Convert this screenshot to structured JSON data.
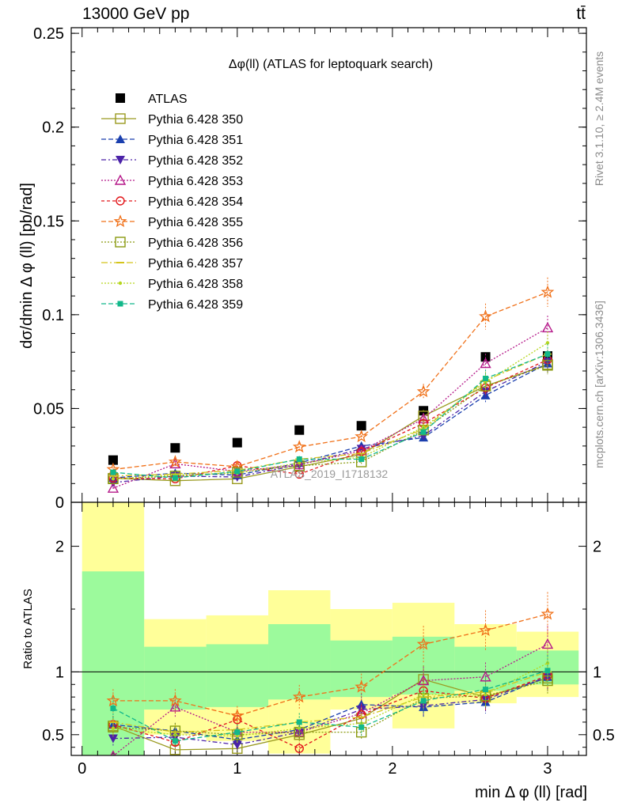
{
  "header": {
    "energy_label": "13000 GeV pp",
    "process_label": "tt̄"
  },
  "side_texts": {
    "rivet": "Rivet 3.1.10, ≥ 2.4M events",
    "mcplots": "mcplots.cern.ch [arXiv:1306.3436]"
  },
  "watermark": "ATLAS_2019_I1718132",
  "chart_data": [
    {
      "type": "scatter",
      "title": "Δφ(ll) (ATLAS for leptoquark search)",
      "ylabel": "dσ/dmin Δ φ (ll) [pb/rad]",
      "xlabel": "min Δ φ (ll) [rad]",
      "xlim": [
        -0.07,
        3.25
      ],
      "ylim": [
        0,
        0.253
      ],
      "yticks": [
        0,
        0.05,
        0.1,
        0.15,
        0.2,
        0.25
      ],
      "ytick_labels": [
        "0",
        "0.05",
        "0.1",
        "0.15",
        "0.2",
        "0.25"
      ],
      "x": [
        0.2,
        0.6,
        1.0,
        1.4,
        1.8,
        2.2,
        2.6,
        3.0
      ],
      "legend_position": "top-left",
      "series": [
        {
          "name": "ATLAS",
          "color": "#000000",
          "marker": "filled-square",
          "dash": "none",
          "values": [
            0.0225,
            0.029,
            0.0318,
            0.0385,
            0.0408,
            0.0488,
            0.0775,
            0.078
          ]
        },
        {
          "name": "Pythia 6.428 350",
          "color": "#9a9a20",
          "marker": "open-square",
          "dash": "solid",
          "values": [
            0.0128,
            0.0115,
            0.0125,
            0.019,
            0.0255,
            0.046,
            0.062,
            0.0735
          ]
        },
        {
          "name": "Pythia 6.428 351",
          "color": "#1a3fae",
          "marker": "filled-triangle-up",
          "dash": "6,3",
          "values": [
            0.013,
            0.0155,
            0.0145,
            0.021,
            0.03,
            0.0345,
            0.057,
            0.074
          ]
        },
        {
          "name": "Pythia 6.428 352",
          "color": "#4b22a8",
          "marker": "filled-triangle-down",
          "dash": "6,3,2,3",
          "values": [
            0.0105,
            0.014,
            0.0135,
            0.02,
            0.0285,
            0.0355,
            0.059,
            0.075
          ]
        },
        {
          "name": "Pythia 6.428 353",
          "color": "#b5198a",
          "marker": "open-triangle-up",
          "dash": "2,2",
          "values": [
            0.0075,
            0.0205,
            0.0165,
            0.02,
            0.0275,
            0.0445,
            0.074,
            0.093
          ]
        },
        {
          "name": "Pythia 6.428 354",
          "color": "#e2171b",
          "marker": "open-circle",
          "dash": "4,3",
          "values": [
            0.013,
            0.0125,
            0.0195,
            0.015,
            0.027,
            0.042,
            0.061,
            0.076
          ]
        },
        {
          "name": "Pythia 6.428 355",
          "color": "#f07018",
          "marker": "open-star",
          "dash": "6,3",
          "values": [
            0.0175,
            0.0215,
            0.019,
            0.0295,
            0.035,
            0.059,
            0.099,
            0.112
          ]
        },
        {
          "name": "Pythia 6.428 356",
          "color": "#8a9a10",
          "marker": "open-square",
          "dash": "2,2",
          "values": [
            0.0125,
            0.014,
            0.016,
            0.0195,
            0.0215,
            0.0385,
            0.062,
            0.073
          ]
        },
        {
          "name": "Pythia 6.428 357",
          "color": "#d4c41a",
          "marker": "dash",
          "dash": "8,3,2,3",
          "values": [
            0.014,
            0.015,
            0.017,
            0.023,
            0.026,
            0.039,
            0.065,
            0.079
          ]
        },
        {
          "name": "Pythia 6.428 358",
          "color": "#b6d61e",
          "marker": "dot",
          "dash": "2,2",
          "values": [
            0.0125,
            0.0145,
            0.0155,
            0.021,
            0.024,
            0.04,
            0.064,
            0.085
          ]
        },
        {
          "name": "Pythia 6.428 359",
          "color": "#12b88a",
          "marker": "filled-square-small",
          "dash": "6,3",
          "values": [
            0.016,
            0.013,
            0.0165,
            0.023,
            0.023,
            0.0375,
            0.066,
            0.079
          ]
        }
      ]
    },
    {
      "type": "scatter",
      "ylabel": "Ratio to ATLAS",
      "xlabel": "min Δ φ (ll) [rad]",
      "xlim": [
        -0.07,
        3.25
      ],
      "ylim": [
        0.335,
        2.35
      ],
      "yticks": [
        0.5,
        1,
        2
      ],
      "ytick_labels": [
        "0.5",
        "1",
        "2"
      ],
      "xticks": [
        0,
        1,
        2,
        3
      ],
      "xtick_labels": [
        "0",
        "1",
        "2",
        "3"
      ],
      "x": [
        0.2,
        0.6,
        1.0,
        1.4,
        1.8,
        2.2,
        2.6,
        3.0
      ],
      "bin_edges": [
        0,
        0.4,
        0.8,
        1.2,
        1.6,
        2.0,
        2.4,
        2.8,
        3.2
      ],
      "uncertainty_band_inner": {
        "color": "#9cfa9c",
        "low": [
          0.2,
          0.7,
          0.72,
          0.78,
          0.8,
          0.82,
          0.85,
          0.9
        ],
        "high": [
          1.8,
          1.2,
          1.22,
          1.38,
          1.25,
          1.28,
          1.2,
          1.17
        ]
      },
      "uncertainty_band_outer": {
        "color": "#ffff99",
        "low": [
          0.2,
          0.5,
          0.45,
          0.35,
          0.7,
          0.55,
          0.75,
          0.8
        ],
        "high": [
          2.4,
          1.42,
          1.45,
          1.65,
          1.5,
          1.55,
          1.38,
          1.32
        ]
      },
      "reference_value": 1,
      "series": [
        {
          "name": "Pythia 6.428 350",
          "color": "#9a9a20",
          "marker": "open-square",
          "dash": "solid",
          "values": [
            0.57,
            0.38,
            0.39,
            0.5,
            0.63,
            0.94,
            0.8,
            0.95
          ]
        },
        {
          "name": "Pythia 6.428 351",
          "color": "#1a3fae",
          "marker": "filled-triangle-up",
          "dash": "6,3",
          "values": [
            0.58,
            0.53,
            0.46,
            0.54,
            0.74,
            0.72,
            0.76,
            0.96
          ]
        },
        {
          "name": "Pythia 6.428 352",
          "color": "#4b22a8",
          "marker": "filled-triangle-down",
          "dash": "6,3,2,3",
          "values": [
            0.47,
            0.48,
            0.42,
            0.52,
            0.7,
            0.73,
            0.78,
            0.96
          ]
        },
        {
          "name": "Pythia 6.428 353",
          "color": "#b5198a",
          "marker": "open-triangle-up",
          "dash": "2,2",
          "values": [
            0.33,
            0.72,
            0.52,
            0.52,
            0.67,
            0.93,
            0.96,
            1.22
          ]
        },
        {
          "name": "Pythia 6.428 354",
          "color": "#e2171b",
          "marker": "open-circle",
          "dash": "4,3",
          "values": [
            0.58,
            0.44,
            0.62,
            0.39,
            0.66,
            0.85,
            0.79,
            0.97
          ]
        },
        {
          "name": "Pythia 6.428 355",
          "color": "#f07018",
          "marker": "open-star",
          "dash": "6,3",
          "values": [
            0.77,
            0.77,
            0.65,
            0.8,
            0.88,
            1.22,
            1.33,
            1.46
          ]
        },
        {
          "name": "Pythia 6.428 356",
          "color": "#8a9a10",
          "marker": "open-square",
          "dash": "2,2",
          "values": [
            0.56,
            0.53,
            0.5,
            0.52,
            0.52,
            0.79,
            0.81,
            0.93
          ]
        },
        {
          "name": "Pythia 6.428 357",
          "color": "#d4c41a",
          "marker": "dash",
          "dash": "8,3,2,3",
          "values": [
            0.6,
            0.52,
            0.54,
            0.6,
            0.64,
            0.8,
            0.84,
            1.0
          ]
        },
        {
          "name": "Pythia 6.428 358",
          "color": "#b6d61e",
          "marker": "dot",
          "dash": "2,2",
          "values": [
            0.55,
            0.5,
            0.49,
            0.55,
            0.59,
            0.82,
            0.82,
            1.07
          ]
        },
        {
          "name": "Pythia 6.428 359",
          "color": "#12b88a",
          "marker": "filled-square-small",
          "dash": "6,3",
          "values": [
            0.71,
            0.45,
            0.52,
            0.6,
            0.56,
            0.77,
            0.86,
            1.01
          ]
        }
      ]
    }
  ]
}
